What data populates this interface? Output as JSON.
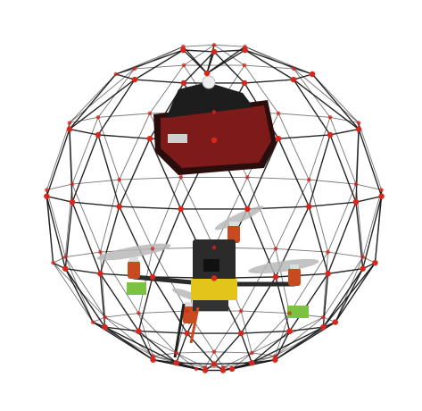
{
  "image": {
    "subject": "drone-in-spherical-cage",
    "background_color": "#ffffff",
    "colors": {
      "cage_rod": "#1a1a1a",
      "cage_joint": "#d8261c",
      "payload": "#8c1f1f",
      "payload_dark": "#2a0d0d",
      "motor": "#c94a1e",
      "battery": "#2b2b2b",
      "board": "#e2c41a",
      "propeller": "#b9b9b9",
      "esc": "#7cc242"
    }
  }
}
